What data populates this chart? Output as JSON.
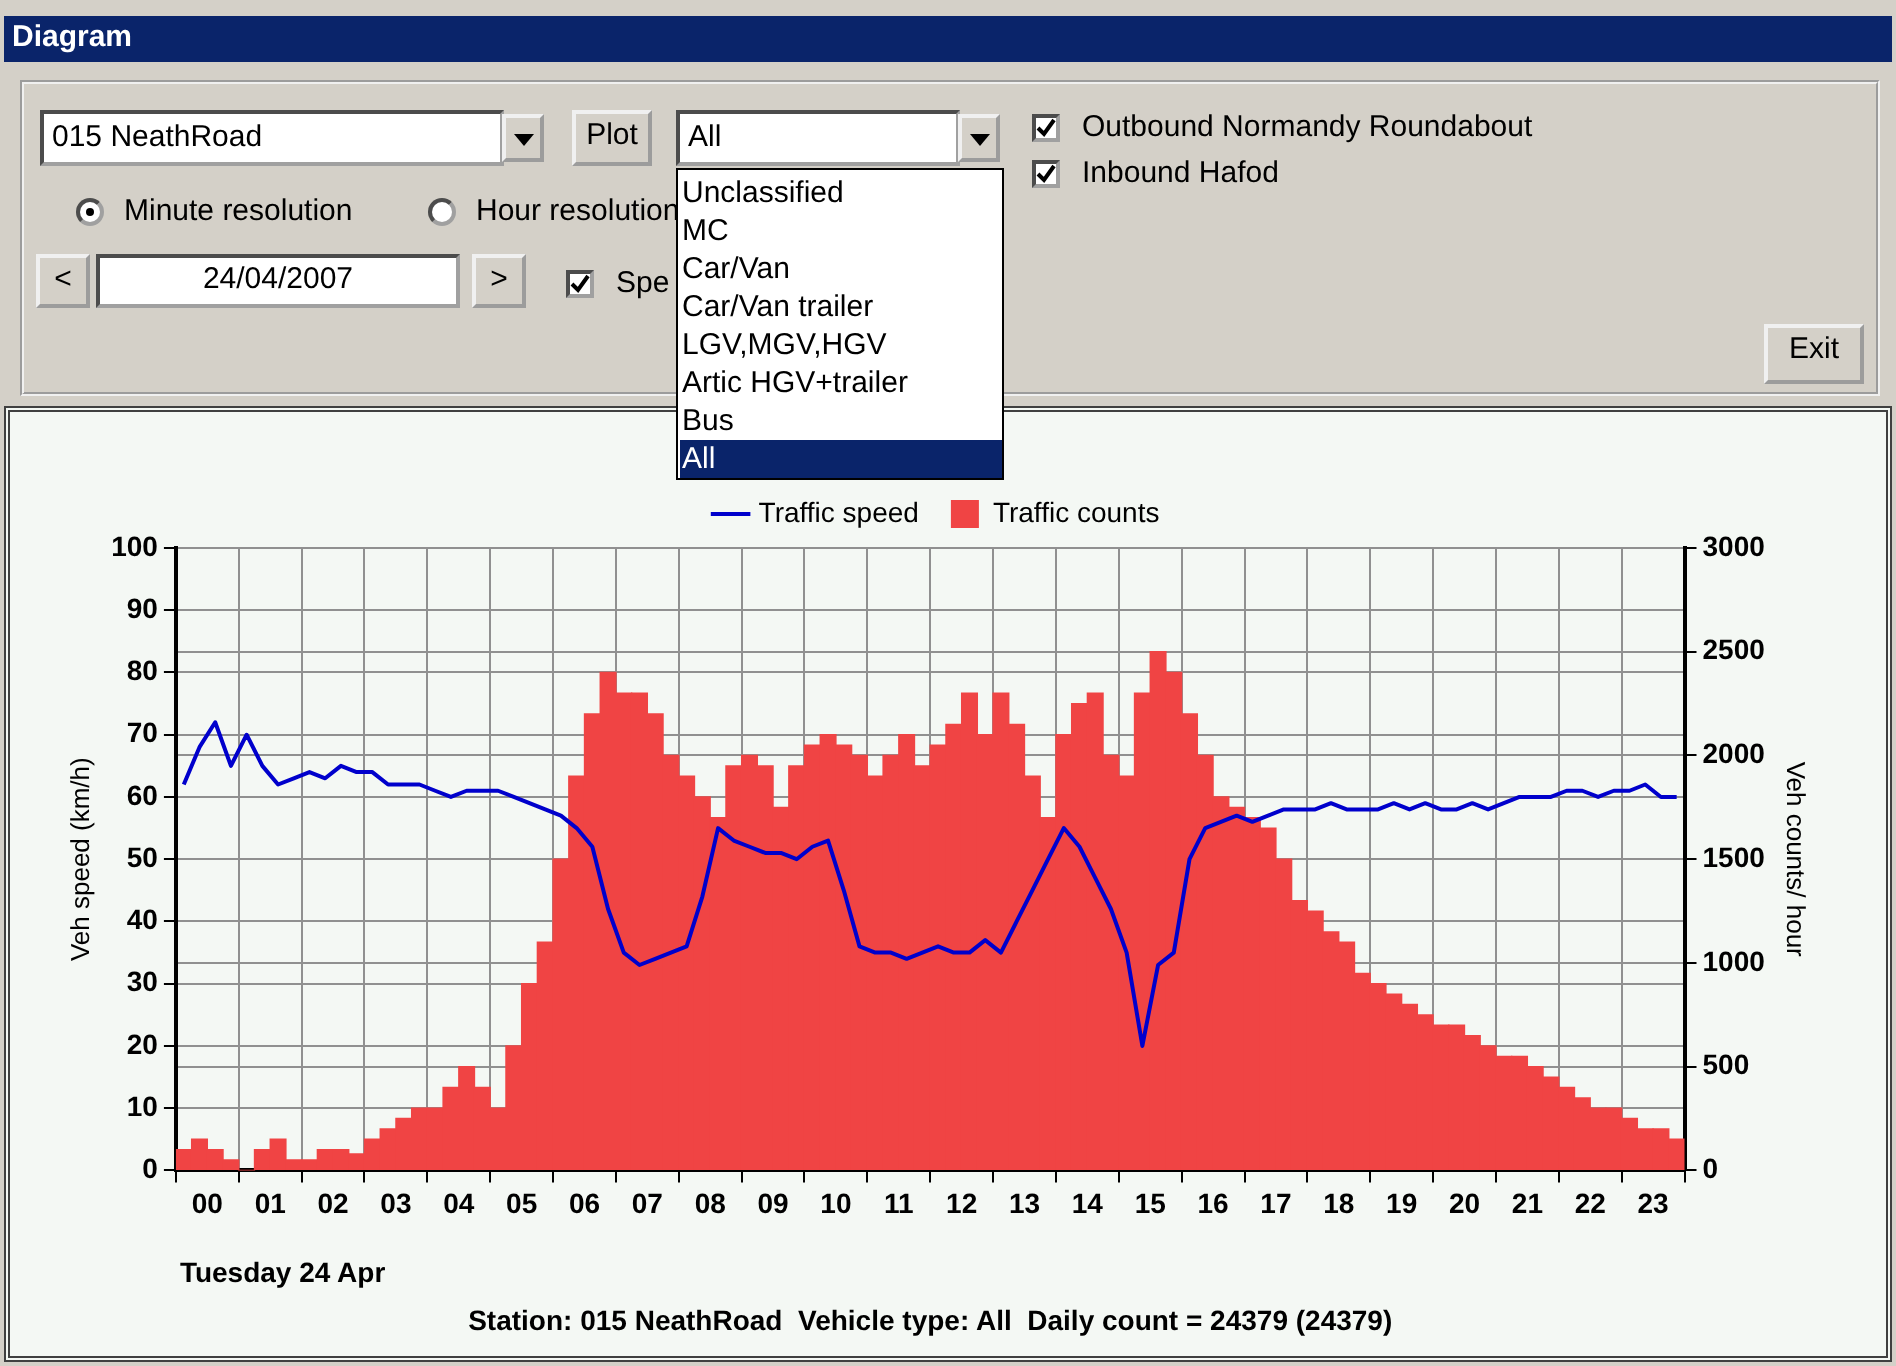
{
  "chart_data": [
    {
      "type": "other",
      "title": "Diagram",
      "annotations": [
        "015 NeathRoad",
        "Plot",
        "All",
        "Unclassified",
        "MC",
        "Car/Van",
        "Car/Van trailer",
        "LGV,MGV,HGV",
        "Artic HGV+trailer",
        "Bus",
        "All",
        "Outbound Normandy Roundabout",
        "Inbound Hafod",
        "Minute resolution",
        "Hour resolution",
        "<",
        "24/04/2007",
        ">",
        "Spe",
        "Exit"
      ]
    },
    {
      "type": "bar",
      "xlabel": "Tuesday 24 Apr",
      "ylabel": "Veh speed (km/h)",
      "y2label": "Veh counts/ hour",
      "legend": "top",
      "grid": true,
      "x": [
        0.125,
        0.375,
        0.625,
        0.875,
        1.125,
        1.375,
        1.625,
        1.875,
        2.125,
        2.375,
        2.625,
        2.875,
        3.125,
        3.375,
        3.625,
        3.875,
        4.125,
        4.375,
        4.625,
        4.875,
        5.125,
        5.375,
        5.625,
        5.875,
        6.125,
        6.375,
        6.625,
        6.875,
        7.125,
        7.375,
        7.625,
        7.875,
        8.125,
        8.375,
        8.625,
        8.875,
        9.125,
        9.375,
        9.625,
        9.875,
        10.125,
        10.375,
        10.625,
        10.875,
        11.125,
        11.375,
        11.625,
        11.875,
        12.125,
        12.375,
        12.625,
        12.875,
        13.125,
        13.375,
        13.625,
        13.875,
        14.125,
        14.375,
        14.625,
        14.875,
        15.125,
        15.375,
        15.625,
        15.875,
        16.125,
        16.375,
        16.625,
        16.875,
        17.125,
        17.375,
        17.625,
        17.875,
        18.125,
        18.375,
        18.625,
        18.875,
        19.125,
        19.375,
        19.625,
        19.875,
        20.125,
        20.375,
        20.625,
        20.875,
        21.125,
        21.375,
        21.625,
        21.875,
        22.125,
        22.375,
        22.625,
        22.875,
        23.125,
        23.375,
        23.625,
        23.875
      ],
      "series": [
        {
          "name": "Traffic speed",
          "type": "line",
          "axis": "y",
          "color": "#0000cc",
          "values": [
            62,
            68,
            72,
            65,
            70,
            65,
            62,
            63,
            64,
            63,
            65,
            64,
            64,
            62,
            62,
            62,
            61,
            60,
            61,
            61,
            61,
            60,
            59,
            58,
            57,
            55,
            52,
            42,
            35,
            33,
            34,
            35,
            36,
            44,
            55,
            53,
            52,
            51,
            51,
            50,
            52,
            53,
            45,
            36,
            35,
            35,
            34,
            35,
            36,
            35,
            35,
            37,
            35,
            40,
            45,
            50,
            55,
            52,
            47,
            42,
            35,
            20,
            33,
            35,
            50,
            55,
            56,
            57,
            56,
            57,
            58,
            58,
            58,
            59,
            58,
            58,
            58,
            59,
            58,
            59,
            58,
            58,
            59,
            58,
            59,
            60,
            60,
            60,
            61,
            61,
            60,
            61,
            61,
            62,
            60,
            60
          ]
        },
        {
          "name": "Traffic counts",
          "type": "bar",
          "axis": "y2",
          "color": "#f04444",
          "values": [
            100,
            150,
            100,
            50,
            0,
            100,
            150,
            50,
            50,
            100,
            100,
            80,
            150,
            200,
            250,
            300,
            300,
            400,
            500,
            400,
            300,
            600,
            900,
            1100,
            1500,
            1900,
            2200,
            2400,
            2300,
            2300,
            2200,
            2000,
            1900,
            1800,
            1700,
            1950,
            2000,
            1950,
            1750,
            1950,
            2050,
            2100,
            2050,
            2000,
            1900,
            2000,
            2100,
            1950,
            2050,
            2150,
            2300,
            2100,
            2300,
            2150,
            1900,
            1700,
            2100,
            2250,
            2300,
            2000,
            1900,
            2300,
            2500,
            2400,
            2200,
            2000,
            1800,
            1750,
            1700,
            1650,
            1500,
            1300,
            1250,
            1150,
            1100,
            950,
            900,
            850,
            800,
            750,
            700,
            700,
            650,
            600,
            550,
            550,
            500,
            450,
            400,
            350,
            300,
            300,
            250,
            200,
            200,
            150
          ]
        }
      ],
      "xlim": [
        0,
        24
      ],
      "xticks": [
        {
          "value": 0,
          "label": null
        },
        {
          "value": 0.5,
          "label": "00"
        },
        {
          "value": 1,
          "label": null
        },
        {
          "value": 1.5,
          "label": "01"
        },
        {
          "value": 2,
          "label": null
        },
        {
          "value": 2.5,
          "label": "02"
        },
        {
          "value": 3,
          "label": null
        },
        {
          "value": 3.5,
          "label": "03"
        },
        {
          "value": 4,
          "label": null
        },
        {
          "value": 4.5,
          "label": "04"
        },
        {
          "value": 5,
          "label": null
        },
        {
          "value": 5.5,
          "label": "05"
        },
        {
          "value": 6,
          "label": null
        },
        {
          "value": 6.5,
          "label": "06"
        },
        {
          "value": 7,
          "label": null
        },
        {
          "value": 7.5,
          "label": "07"
        },
        {
          "value": 8,
          "label": null
        },
        {
          "value": 8.5,
          "label": "08"
        },
        {
          "value": 9,
          "label": null
        },
        {
          "value": 9.5,
          "label": "09"
        },
        {
          "value": 10,
          "label": null
        },
        {
          "value": 10.5,
          "label": "10"
        },
        {
          "value": 11,
          "label": null
        },
        {
          "value": 11.5,
          "label": "11"
        },
        {
          "value": 12,
          "label": null
        },
        {
          "value": 12.5,
          "label": "12"
        },
        {
          "value": 13,
          "label": null
        },
        {
          "value": 13.5,
          "label": "13"
        },
        {
          "value": 14,
          "label": null
        },
        {
          "value": 14.5,
          "label": "14"
        },
        {
          "value": 15,
          "label": null
        },
        {
          "value": 15.5,
          "label": "15"
        },
        {
          "value": 16,
          "label": null
        },
        {
          "value": 16.5,
          "label": "16"
        },
        {
          "value": 17,
          "label": null
        },
        {
          "value": 17.5,
          "label": "17"
        },
        {
          "value": 18,
          "label": null
        },
        {
          "value": 18.5,
          "label": "18"
        },
        {
          "value": 19,
          "label": null
        },
        {
          "value": 19.5,
          "label": "19"
        },
        {
          "value": 20,
          "label": null
        },
        {
          "value": 20.5,
          "label": "20"
        },
        {
          "value": 21,
          "label": null
        },
        {
          "value": 21.5,
          "label": "21"
        },
        {
          "value": 22,
          "label": null
        },
        {
          "value": 22.5,
          "label": "22"
        },
        {
          "value": 23,
          "label": null
        },
        {
          "value": 23.5,
          "label": "23"
        },
        {
          "value": 24,
          "label": null
        }
      ],
      "ylim": [
        0,
        100
      ],
      "yticks": [
        0,
        10,
        20,
        30,
        40,
        50,
        60,
        70,
        80,
        90,
        100
      ],
      "y2lim": [
        0,
        3000
      ],
      "y2ticks": [
        0,
        500,
        1000,
        1500,
        2000,
        2500,
        3000
      ],
      "annotations": [
        "Station: 015 NeathRoad  Vehicle type: All  Daily count = 24379 (24379)"
      ]
    }
  ]
}
